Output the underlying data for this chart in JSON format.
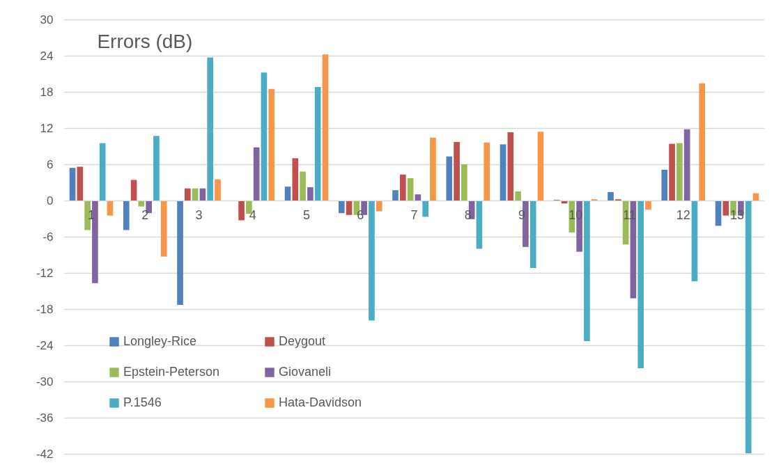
{
  "chart_data": {
    "type": "bar",
    "title": "Errors (dB)",
    "categories": [
      "1",
      "2",
      "3",
      "4",
      "5",
      "6",
      "7",
      "8",
      "9",
      "10",
      "11",
      "12",
      "13"
    ],
    "series": [
      {
        "name": "Longley-Rice",
        "color": "#4f81bd",
        "values": [
          5.4,
          -4.9,
          -17.3,
          null,
          2.3,
          -2.1,
          1.7,
          7.3,
          9.3,
          0.1,
          1.4,
          5.1,
          -4.2
        ]
      },
      {
        "name": "Deygout",
        "color": "#c0504d",
        "values": [
          5.6,
          3.4,
          2.0,
          -3.3,
          7.0,
          -2.4,
          4.3,
          9.7,
          11.3,
          -0.5,
          0.2,
          9.4,
          -2.5
        ]
      },
      {
        "name": "Epstein-Peterson",
        "color": "#9bbb59",
        "values": [
          -4.9,
          -1.0,
          2.0,
          -2.2,
          4.8,
          -2.4,
          3.7,
          6.0,
          1.5,
          -5.3,
          -7.3,
          9.5,
          -2.5
        ]
      },
      {
        "name": "Giovaneli",
        "color": "#8064a2",
        "values": [
          -13.7,
          -2.1,
          2.0,
          8.8,
          2.2,
          -2.4,
          1.0,
          -3.1,
          -7.7,
          -8.5,
          -16.2,
          11.8,
          -2.5
        ]
      },
      {
        "name": "P.1546",
        "color": "#4bacc6",
        "values": [
          9.5,
          10.7,
          23.7,
          21.2,
          18.8,
          -19.9,
          -2.7,
          -8.0,
          -11.2,
          -23.3,
          -27.8,
          -13.4,
          -41.9
        ]
      },
      {
        "name": "Hata-Davidson",
        "color": "#f79646",
        "values": [
          -2.5,
          -9.3,
          3.5,
          18.5,
          24.2,
          -1.8,
          10.4,
          9.6,
          11.4,
          0.2,
          -1.5,
          19.4,
          1.2
        ]
      }
    ],
    "ylim": [
      -42,
      30
    ],
    "yticks": [
      -42,
      -36,
      -30,
      -24,
      -18,
      -12,
      -6,
      0,
      6,
      12,
      18,
      24,
      30
    ],
    "grid": "y",
    "legend": "bottom left"
  }
}
